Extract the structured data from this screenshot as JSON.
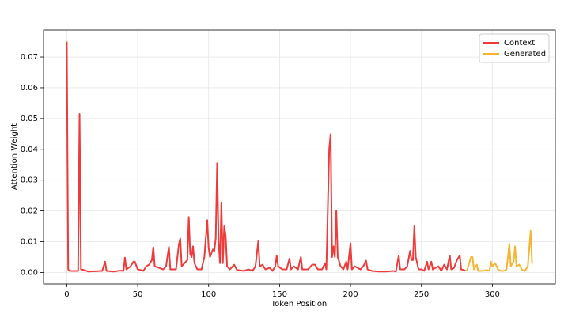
{
  "chart_data": {
    "type": "line",
    "xlabel": "Token Position",
    "ylabel": "Attention Weight",
    "xlim": [
      -16.4,
      344.4
    ],
    "ylim": [
      -0.00375,
      0.07875
    ],
    "xticks": [
      0,
      50,
      100,
      150,
      200,
      250,
      300
    ],
    "yticks": [
      {
        "value": 0,
        "label": "0.00"
      },
      {
        "value": 0.01,
        "label": "0.01"
      },
      {
        "value": 0.02,
        "label": "0.02"
      },
      {
        "value": 0.03,
        "label": "0.03"
      },
      {
        "value": 0.04,
        "label": "0.04"
      },
      {
        "value": 0.05,
        "label": "0.05"
      },
      {
        "value": 0.06,
        "label": "0.06"
      },
      {
        "value": 0.07,
        "label": "0.07"
      }
    ],
    "grid": true,
    "legend": "upper right",
    "series": [
      {
        "name": "Context",
        "color": "#f03a3a",
        "x": [
          0,
          1,
          2,
          8,
          9,
          10,
          12,
          15,
          20,
          25,
          27,
          28,
          33,
          38,
          40,
          41,
          42,
          45,
          47,
          48,
          50,
          52,
          54,
          56,
          58,
          60,
          61,
          62,
          65,
          68,
          70,
          72,
          73,
          75,
          77,
          79,
          80,
          81,
          83,
          85,
          86,
          87,
          88,
          89,
          90,
          92,
          95,
          97,
          99,
          100,
          101,
          103,
          104,
          105,
          106,
          107,
          108,
          109,
          110,
          111,
          112,
          113,
          115,
          118,
          120,
          125,
          128,
          131,
          133,
          135,
          136,
          138,
          140,
          143,
          145,
          147,
          148,
          149,
          152,
          155,
          157,
          158,
          160,
          163,
          165,
          166,
          170,
          173,
          175,
          177,
          180,
          182,
          183,
          185,
          186,
          187,
          188,
          189,
          190,
          191,
          193,
          195,
          197,
          198,
          200,
          201,
          203,
          205,
          207,
          209,
          211,
          212,
          215,
          220,
          225,
          230,
          232,
          234,
          235,
          238,
          240,
          242,
          243,
          244,
          245,
          246,
          248,
          250,
          252,
          254,
          255,
          257,
          258,
          260,
          262,
          264,
          266,
          268,
          270,
          271,
          273,
          275,
          277,
          278,
          280,
          281
        ],
        "values": [
          0.075,
          0.001,
          0.0005,
          0.0005,
          0.0515,
          0.001,
          0.0008,
          0.0003,
          0.0004,
          0.0005,
          0.0035,
          0.0005,
          0.0003,
          0.0006,
          0.0005,
          0.0048,
          0.001,
          0.002,
          0.0035,
          0.0035,
          0.001,
          0.0008,
          0.0005,
          0.002,
          0.0025,
          0.004,
          0.0082,
          0.002,
          0.0015,
          0.001,
          0.002,
          0.0083,
          0.001,
          0.001,
          0.001,
          0.009,
          0.011,
          0.002,
          0.003,
          0.004,
          0.018,
          0.006,
          0.005,
          0.0085,
          0.003,
          0.001,
          0.001,
          0.005,
          0.017,
          0.008,
          0.005,
          0.0075,
          0.007,
          0.011,
          0.0355,
          0.01,
          0.003,
          0.0225,
          0.003,
          0.015,
          0.012,
          0.002,
          0.001,
          0.0025,
          0.0008,
          0.0005,
          0.001,
          0.0005,
          0.002,
          0.0102,
          0.002,
          0.0025,
          0.001,
          0.0015,
          0.0005,
          0.002,
          0.0055,
          0.002,
          0.001,
          0.001,
          0.0045,
          0.001,
          0.002,
          0.001,
          0.005,
          0.001,
          0.001,
          0.0025,
          0.0025,
          0.001,
          0.001,
          0.003,
          0.001,
          0.04,
          0.045,
          0.005,
          0.0085,
          0.005,
          0.02,
          0.005,
          0.002,
          0.001,
          0.0035,
          0.001,
          0.0095,
          0.001,
          0.002,
          0.0015,
          0.001,
          0.002,
          0.0038,
          0.001,
          0.0005,
          0.0003,
          0.0003,
          0.0005,
          0.0003,
          0.0055,
          0.001,
          0.001,
          0.002,
          0.007,
          0.004,
          0.004,
          0.015,
          0.005,
          0.001,
          0.001,
          0.0005,
          0.0035,
          0.001,
          0.0035,
          0.001,
          0.0015,
          0.002,
          0.0005,
          0.0025,
          0.001,
          0.0055,
          0.001,
          0.0015,
          0.004,
          0.0055,
          0.001,
          0.0008,
          0.0005
        ]
      },
      {
        "name": "Generated",
        "color": "#f5b532",
        "x": [
          282,
          285,
          286,
          287,
          289,
          290,
          293,
          296,
          298,
          299,
          300,
          302,
          304,
          306,
          308,
          310,
          312,
          313,
          315,
          316,
          317,
          319,
          321,
          323,
          325,
          327,
          328
        ],
        "values": [
          0.0005,
          0.005,
          0.005,
          0.001,
          0.0025,
          0.0005,
          0.0005,
          0.0008,
          0.0005,
          0.0035,
          0.002,
          0.003,
          0.001,
          0.0005,
          0.0005,
          0.001,
          0.0093,
          0.002,
          0.0035,
          0.0085,
          0.002,
          0.0025,
          0.0008,
          0.0005,
          0.002,
          0.0135,
          0.0028
        ]
      }
    ]
  }
}
